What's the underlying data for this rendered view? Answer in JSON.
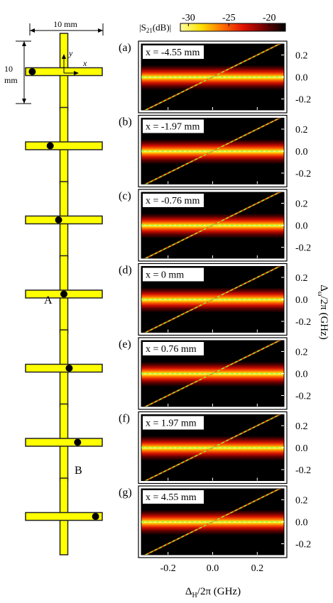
{
  "colorbar": {
    "label": "|S21(dB)|",
    "ticks": [
      "-30",
      "-25",
      "-20"
    ],
    "tick_values": [
      -30,
      -25,
      -20
    ],
    "range": [
      -31,
      -18
    ],
    "colors": [
      "#ffffa0",
      "#ffe000",
      "#ff7000",
      "#e01000",
      "#700000",
      "#000000"
    ]
  },
  "layout_key": {
    "width_label": "10 mm",
    "height_label_1": "10",
    "height_label_2": "mm",
    "axis_y": "y",
    "axis_x": "x",
    "point_a": "A",
    "point_b": "B"
  },
  "cross_colors": {
    "fill": "#ffff00",
    "edge": "#222222",
    "dot": "#000000"
  },
  "chart_data": {
    "type": "heatmap",
    "xlabel": "ΔH/2π (GHz)",
    "ylabel": "Δω/2π (GHz)",
    "xlim": [
      -0.32,
      0.32
    ],
    "ylim": [
      -0.3,
      0.3
    ],
    "xticks": [
      -0.2,
      0.0,
      0.2
    ],
    "xtick_labels": [
      "-0.2",
      "0.0",
      "0.2"
    ],
    "yticks": [
      0.2,
      0.0,
      -0.2
    ],
    "ytick_labels": [
      "0.2",
      "0.0",
      "-0.2"
    ],
    "guide_line_color": "#88ff44",
    "panels": [
      {
        "tag": "(a)",
        "label": "x = -4.55 mm",
        "x_mm": -4.55,
        "diagonal": true
      },
      {
        "tag": "(b)",
        "label": "x = -1.97 mm",
        "x_mm": -1.97,
        "diagonal": true
      },
      {
        "tag": "(c)",
        "label": "x = -0.76 mm",
        "x_mm": -0.76,
        "diagonal": true
      },
      {
        "tag": "(d)",
        "label": "x = 0 mm",
        "x_mm": 0,
        "diagonal": true
      },
      {
        "tag": "(e)",
        "label": "x = 0.76 mm",
        "x_mm": 0.76,
        "diagonal": true
      },
      {
        "tag": "(f)",
        "label": "x = 1.97 mm",
        "x_mm": 1.97,
        "diagonal": true
      },
      {
        "tag": "(g)",
        "label": "x = 4.55 mm",
        "x_mm": 4.55,
        "diagonal": true
      }
    ]
  }
}
